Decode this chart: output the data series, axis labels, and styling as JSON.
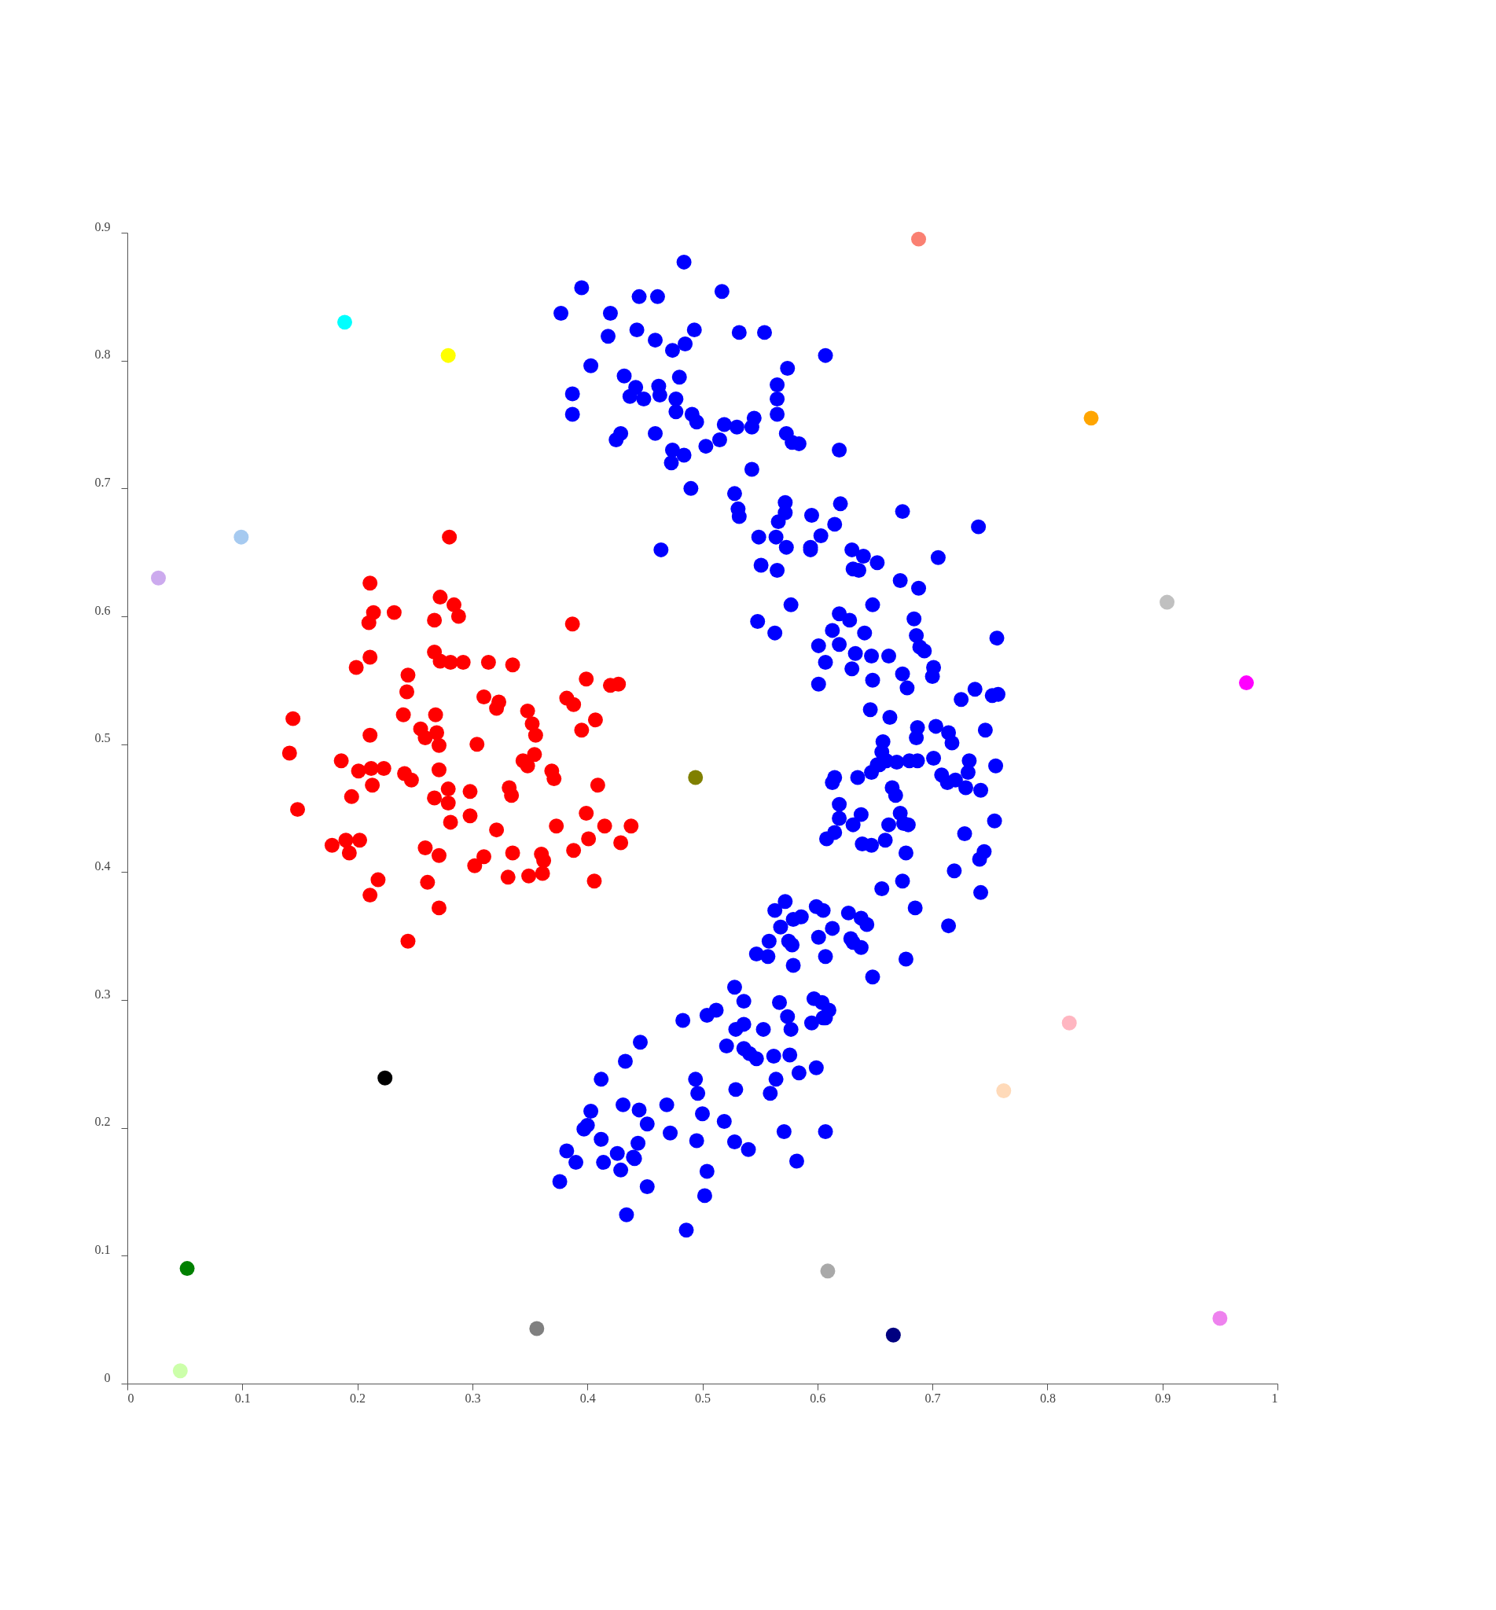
{
  "chart_data": {
    "type": "scatter",
    "marker": "circle",
    "grid": false,
    "legend": false,
    "xlim": [
      0,
      1
    ],
    "xticks": [
      0,
      0.1,
      0.2,
      0.3,
      0.4,
      0.5,
      0.6,
      0.7,
      0.8,
      0.9,
      1
    ],
    "ylim": [
      0,
      0.9
    ],
    "yticks": [
      0,
      0.1,
      0.2,
      0.3,
      0.4,
      0.5,
      0.6,
      0.7,
      0.8,
      0.9
    ],
    "series": [
      {
        "color": "#ff0000",
        "x": [
          0.28,
          0.211,
          0.214,
          0.21,
          0.232,
          0.272,
          0.267,
          0.284,
          0.288,
          0.387,
          0.211,
          0.199,
          0.267,
          0.272,
          0.281,
          0.292,
          0.314,
          0.335,
          0.244,
          0.243,
          0.399,
          0.42,
          0.427,
          0.144,
          0.141,
          0.24,
          0.268,
          0.31,
          0.323,
          0.321,
          0.348,
          0.352,
          0.355,
          0.382,
          0.388,
          0.407,
          0.395,
          0.255,
          0.259,
          0.269,
          0.271,
          0.304,
          0.211,
          0.186,
          0.201,
          0.212,
          0.223,
          0.213,
          0.195,
          0.241,
          0.247,
          0.271,
          0.344,
          0.348,
          0.354,
          0.369,
          0.371,
          0.409,
          0.148,
          0.267,
          0.279,
          0.279,
          0.298,
          0.332,
          0.334,
          0.281,
          0.298,
          0.321,
          0.373,
          0.399,
          0.415,
          0.438,
          0.401,
          0.429,
          0.178,
          0.19,
          0.202,
          0.193,
          0.259,
          0.271,
          0.31,
          0.302,
          0.335,
          0.331,
          0.36,
          0.362,
          0.361,
          0.349,
          0.388,
          0.406,
          0.218,
          0.211,
          0.261,
          0.271,
          0.244
        ],
        "values": [
          0.662,
          0.626,
          0.603,
          0.595,
          0.603,
          0.615,
          0.597,
          0.609,
          0.6,
          0.594,
          0.568,
          0.56,
          0.572,
          0.565,
          0.564,
          0.564,
          0.564,
          0.562,
          0.554,
          0.541,
          0.551,
          0.546,
          0.547,
          0.52,
          0.493,
          0.523,
          0.523,
          0.537,
          0.533,
          0.528,
          0.526,
          0.516,
          0.507,
          0.536,
          0.531,
          0.519,
          0.511,
          0.512,
          0.505,
          0.509,
          0.499,
          0.5,
          0.507,
          0.487,
          0.479,
          0.481,
          0.481,
          0.468,
          0.459,
          0.477,
          0.472,
          0.48,
          0.487,
          0.483,
          0.492,
          0.479,
          0.473,
          0.468,
          0.449,
          0.458,
          0.465,
          0.454,
          0.463,
          0.466,
          0.46,
          0.439,
          0.444,
          0.433,
          0.436,
          0.446,
          0.436,
          0.436,
          0.426,
          0.423,
          0.421,
          0.425,
          0.425,
          0.415,
          0.419,
          0.413,
          0.412,
          0.405,
          0.415,
          0.396,
          0.414,
          0.409,
          0.399,
          0.397,
          0.417,
          0.393,
          0.394,
          0.382,
          0.392,
          0.372,
          0.346
        ]
      },
      {
        "color": "#0000ff",
        "x": [
          0.484,
          0.395,
          0.517,
          0.377,
          0.42,
          0.445,
          0.461,
          0.418,
          0.443,
          0.459,
          0.493,
          0.485,
          0.532,
          0.554,
          0.403,
          0.474,
          0.607,
          0.574,
          0.387,
          0.387,
          0.432,
          0.442,
          0.437,
          0.449,
          0.462,
          0.463,
          0.48,
          0.477,
          0.477,
          0.491,
          0.495,
          0.519,
          0.565,
          0.565,
          0.565,
          0.545,
          0.543,
          0.425,
          0.429,
          0.459,
          0.474,
          0.473,
          0.484,
          0.503,
          0.515,
          0.53,
          0.573,
          0.578,
          0.584,
          0.619,
          0.49,
          0.543,
          0.464,
          0.528,
          0.531,
          0.532,
          0.572,
          0.572,
          0.566,
          0.549,
          0.564,
          0.573,
          0.551,
          0.565,
          0.595,
          0.62,
          0.615,
          0.603,
          0.594,
          0.594,
          0.674,
          0.74,
          0.705,
          0.63,
          0.64,
          0.631,
          0.636,
          0.652,
          0.672,
          0.688,
          0.577,
          0.648,
          0.619,
          0.628,
          0.684,
          0.548,
          0.563,
          0.601,
          0.613,
          0.619,
          0.641,
          0.686,
          0.756,
          0.607,
          0.633,
          0.647,
          0.662,
          0.689,
          0.693,
          0.601,
          0.63,
          0.648,
          0.674,
          0.678,
          0.701,
          0.7,
          0.737,
          0.757,
          0.752,
          0.725,
          0.646,
          0.663,
          0.687,
          0.686,
          0.703,
          0.714,
          0.717,
          0.746,
          0.657,
          0.656,
          0.652,
          0.66,
          0.669,
          0.68,
          0.687,
          0.701,
          0.615,
          0.613,
          0.635,
          0.647,
          0.654,
          0.732,
          0.731,
          0.708,
          0.713,
          0.72,
          0.729,
          0.742,
          0.755,
          0.665,
          0.668,
          0.619,
          0.638,
          0.672,
          0.675,
          0.662,
          0.679,
          0.619,
          0.631,
          0.608,
          0.615,
          0.639,
          0.647,
          0.659,
          0.677,
          0.728,
          0.745,
          0.741,
          0.719,
          0.754,
          0.674,
          0.656,
          0.685,
          0.742,
          0.714,
          0.563,
          0.572,
          0.568,
          0.579,
          0.586,
          0.599,
          0.605,
          0.613,
          0.601,
          0.627,
          0.638,
          0.643,
          0.629,
          0.638,
          0.648,
          0.677,
          0.631,
          0.547,
          0.558,
          0.557,
          0.575,
          0.578,
          0.579,
          0.607,
          0.528,
          0.536,
          0.567,
          0.574,
          0.597,
          0.604,
          0.605,
          0.595,
          0.61,
          0.607,
          0.483,
          0.504,
          0.512,
          0.529,
          0.536,
          0.553,
          0.577,
          0.576,
          0.521,
          0.536,
          0.541,
          0.547,
          0.562,
          0.599,
          0.584,
          0.446,
          0.433,
          0.412,
          0.564,
          0.559,
          0.529,
          0.431,
          0.445,
          0.469,
          0.494,
          0.496,
          0.5,
          0.519,
          0.403,
          0.4,
          0.397,
          0.412,
          0.452,
          0.472,
          0.495,
          0.382,
          0.39,
          0.414,
          0.426,
          0.44,
          0.444,
          0.429,
          0.441,
          0.528,
          0.54,
          0.571,
          0.607,
          0.582,
          0.376,
          0.452,
          0.504,
          0.502,
          0.434,
          0.486
        ],
        "values": [
          0.877,
          0.857,
          0.854,
          0.837,
          0.837,
          0.85,
          0.85,
          0.819,
          0.824,
          0.816,
          0.824,
          0.813,
          0.822,
          0.822,
          0.796,
          0.808,
          0.804,
          0.794,
          0.774,
          0.758,
          0.788,
          0.779,
          0.772,
          0.77,
          0.78,
          0.773,
          0.787,
          0.77,
          0.76,
          0.758,
          0.752,
          0.75,
          0.781,
          0.77,
          0.758,
          0.755,
          0.748,
          0.738,
          0.743,
          0.743,
          0.73,
          0.72,
          0.726,
          0.733,
          0.738,
          0.748,
          0.743,
          0.736,
          0.735,
          0.73,
          0.7,
          0.715,
          0.652,
          0.696,
          0.684,
          0.678,
          0.689,
          0.681,
          0.674,
          0.662,
          0.662,
          0.654,
          0.64,
          0.636,
          0.679,
          0.688,
          0.672,
          0.663,
          0.654,
          0.652,
          0.682,
          0.67,
          0.646,
          0.652,
          0.647,
          0.637,
          0.636,
          0.642,
          0.628,
          0.622,
          0.609,
          0.609,
          0.602,
          0.597,
          0.598,
          0.596,
          0.587,
          0.577,
          0.589,
          0.578,
          0.587,
          0.585,
          0.583,
          0.564,
          0.571,
          0.569,
          0.569,
          0.576,
          0.573,
          0.547,
          0.559,
          0.55,
          0.555,
          0.544,
          0.56,
          0.553,
          0.543,
          0.539,
          0.538,
          0.535,
          0.527,
          0.521,
          0.513,
          0.505,
          0.514,
          0.509,
          0.501,
          0.511,
          0.502,
          0.494,
          0.484,
          0.487,
          0.486,
          0.487,
          0.487,
          0.489,
          0.474,
          0.47,
          0.474,
          0.478,
          0.484,
          0.487,
          0.478,
          0.476,
          0.47,
          0.472,
          0.466,
          0.464,
          0.483,
          0.466,
          0.46,
          0.453,
          0.445,
          0.446,
          0.438,
          0.437,
          0.437,
          0.442,
          0.437,
          0.426,
          0.431,
          0.422,
          0.421,
          0.425,
          0.415,
          0.43,
          0.416,
          0.41,
          0.401,
          0.44,
          0.393,
          0.387,
          0.372,
          0.384,
          0.358,
          0.37,
          0.377,
          0.357,
          0.363,
          0.365,
          0.373,
          0.37,
          0.356,
          0.349,
          0.368,
          0.364,
          0.359,
          0.348,
          0.341,
          0.318,
          0.332,
          0.345,
          0.336,
          0.346,
          0.334,
          0.346,
          0.343,
          0.327,
          0.334,
          0.31,
          0.299,
          0.298,
          0.287,
          0.301,
          0.298,
          0.286,
          0.282,
          0.292,
          0.286,
          0.284,
          0.288,
          0.292,
          0.277,
          0.281,
          0.277,
          0.277,
          0.257,
          0.264,
          0.262,
          0.258,
          0.254,
          0.256,
          0.247,
          0.243,
          0.267,
          0.252,
          0.238,
          0.238,
          0.227,
          0.23,
          0.218,
          0.214,
          0.218,
          0.238,
          0.227,
          0.211,
          0.205,
          0.213,
          0.202,
          0.199,
          0.191,
          0.203,
          0.196,
          0.19,
          0.182,
          0.173,
          0.173,
          0.18,
          0.177,
          0.188,
          0.167,
          0.176,
          0.189,
          0.183,
          0.197,
          0.197,
          0.174,
          0.158,
          0.154,
          0.166,
          0.147,
          0.132,
          0.12
        ]
      },
      {
        "color": "#fa8072",
        "x": [
          0.688
        ],
        "values": [
          0.895
        ]
      },
      {
        "color": "#00ffff",
        "x": [
          0.189
        ],
        "values": [
          0.83
        ]
      },
      {
        "color": "#ffff00",
        "x": [
          0.279
        ],
        "values": [
          0.804
        ]
      },
      {
        "color": "#ffa500",
        "x": [
          0.838
        ],
        "values": [
          0.755
        ]
      },
      {
        "color": "#a6caf0",
        "x": [
          0.099
        ],
        "values": [
          0.662
        ]
      },
      {
        "color": "#ccaaee",
        "x": [
          0.027
        ],
        "values": [
          0.63
        ]
      },
      {
        "color": "#c0c0c0",
        "x": [
          0.904
        ],
        "values": [
          0.611
        ]
      },
      {
        "color": "#ff00ff",
        "x": [
          0.973
        ],
        "values": [
          0.548
        ]
      },
      {
        "color": "#808000",
        "x": [
          0.494
        ],
        "values": [
          0.474
        ]
      },
      {
        "color": "#ffb6c1",
        "x": [
          0.819
        ],
        "values": [
          0.282
        ]
      },
      {
        "color": "#ffdab9",
        "x": [
          0.762
        ],
        "values": [
          0.229
        ]
      },
      {
        "color": "#000000",
        "x": [
          0.224
        ],
        "values": [
          0.239
        ]
      },
      {
        "color": "#008000",
        "x": [
          0.052
        ],
        "values": [
          0.09
        ]
      },
      {
        "color": "#a9a9a9",
        "x": [
          0.609
        ],
        "values": [
          0.088
        ]
      },
      {
        "color": "#808080",
        "x": [
          0.356
        ],
        "values": [
          0.043
        ]
      },
      {
        "color": "#000080",
        "x": [
          0.666
        ],
        "values": [
          0.038
        ]
      },
      {
        "color": "#ee82ee",
        "x": [
          0.95
        ],
        "values": [
          0.051
        ]
      },
      {
        "color": "#ccffaa",
        "x": [
          0.046
        ],
        "values": [
          0.01
        ]
      }
    ]
  }
}
